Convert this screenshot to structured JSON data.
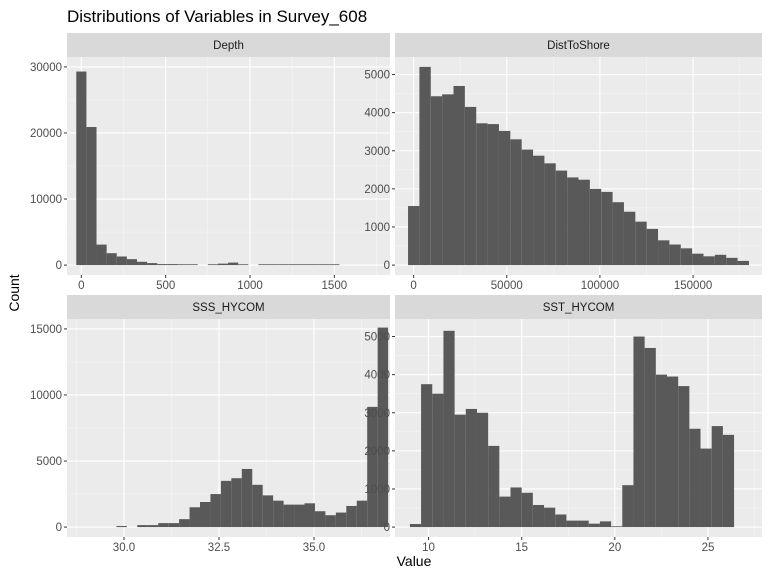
{
  "colors": {
    "panel_bg": "#ebebeb",
    "strip_bg": "#d9d9d9",
    "grid_major": "#ffffff",
    "bar_fill": "#595959",
    "tick": "#333333"
  },
  "chart_data": {
    "type": "bar",
    "title": "Distributions of Variables in Survey_608",
    "xlabel": "Value",
    "ylabel": "Count",
    "grid": true,
    "panels": [
      {
        "name": "Depth",
        "xlim": [
          -85,
          1830
        ],
        "ylim": [
          -1500,
          31500
        ],
        "xticks": [
          0,
          500,
          1000,
          1500
        ],
        "xtick_labels": [
          "0",
          "500",
          "1000",
          "1500"
        ],
        "yticks": [
          0,
          10000,
          20000,
          30000
        ],
        "ytick_labels": [
          "0",
          "10000",
          "20000",
          "30000"
        ],
        "bin_start": -30,
        "bin_width": 60,
        "counts": [
          29300,
          20900,
          3100,
          1800,
          1300,
          900,
          500,
          300,
          150,
          150,
          120,
          120,
          0,
          120,
          220,
          380,
          120,
          0,
          120,
          120,
          120,
          120,
          120,
          120,
          120,
          120,
          0,
          0,
          0,
          0
        ]
      },
      {
        "name": "DistToShore",
        "xlim": [
          -10000,
          187000
        ],
        "ylim": [
          -260,
          5460
        ],
        "xticks": [
          0,
          50000,
          100000,
          150000
        ],
        "xtick_labels": [
          "0",
          "50000",
          "100000",
          "150000"
        ],
        "yticks": [
          0,
          1000,
          2000,
          3000,
          4000,
          5000
        ],
        "ytick_labels": [
          "0",
          "1000",
          "2000",
          "3000",
          "4000",
          "5000"
        ],
        "bin_start": -3000,
        "bin_width": 6100,
        "counts": [
          1550,
          5200,
          4430,
          4480,
          4700,
          4150,
          3720,
          3700,
          3520,
          3300,
          3030,
          2870,
          2670,
          2480,
          2300,
          2240,
          2000,
          1920,
          1650,
          1400,
          1140,
          950,
          650,
          540,
          440,
          300,
          230,
          270,
          190,
          110
        ]
      },
      {
        "name": "SSS_HYCOM",
        "xlim": [
          28.5,
          37.0
        ],
        "ylim": [
          -750,
          15750
        ],
        "xticks": [
          30.0,
          32.5,
          35.0
        ],
        "xtick_labels": [
          "30.0",
          "32.5",
          "35.0"
        ],
        "yticks": [
          0,
          5000,
          10000,
          15000
        ],
        "ytick_labels": [
          "0",
          "5000",
          "10000",
          "15000"
        ],
        "bin_start": 28.7,
        "bin_width": 0.275,
        "counts": [
          0,
          0,
          0,
          0,
          80,
          0,
          150,
          150,
          300,
          300,
          600,
          1500,
          1900,
          2500,
          3500,
          3700,
          4400,
          3200,
          2400,
          2000,
          1700,
          1700,
          1800,
          1200,
          900,
          1100,
          1600,
          2000,
          9100,
          15100
        ]
      },
      {
        "name": "SST_HYCOM",
        "xlim": [
          8.2,
          27.9
        ],
        "ylim": [
          -260,
          5460
        ],
        "xticks": [
          10,
          15,
          20,
          25
        ],
        "xtick_labels": [
          "10",
          "15",
          "20",
          "25"
        ],
        "yticks": [
          0,
          1000,
          2000,
          3000,
          4000,
          5000
        ],
        "ytick_labels": [
          "0",
          "1000",
          "2000",
          "3000",
          "4000",
          "5000"
        ],
        "bin_start": 9.0,
        "bin_width": 0.6,
        "counts": [
          80,
          3750,
          3500,
          5150,
          2950,
          3100,
          3000,
          2130,
          800,
          1040,
          900,
          580,
          510,
          330,
          170,
          170,
          90,
          150,
          20,
          1100,
          5000,
          4700,
          4000,
          3950,
          3700,
          2580,
          2060,
          2650,
          2420,
          0
        ]
      }
    ]
  }
}
